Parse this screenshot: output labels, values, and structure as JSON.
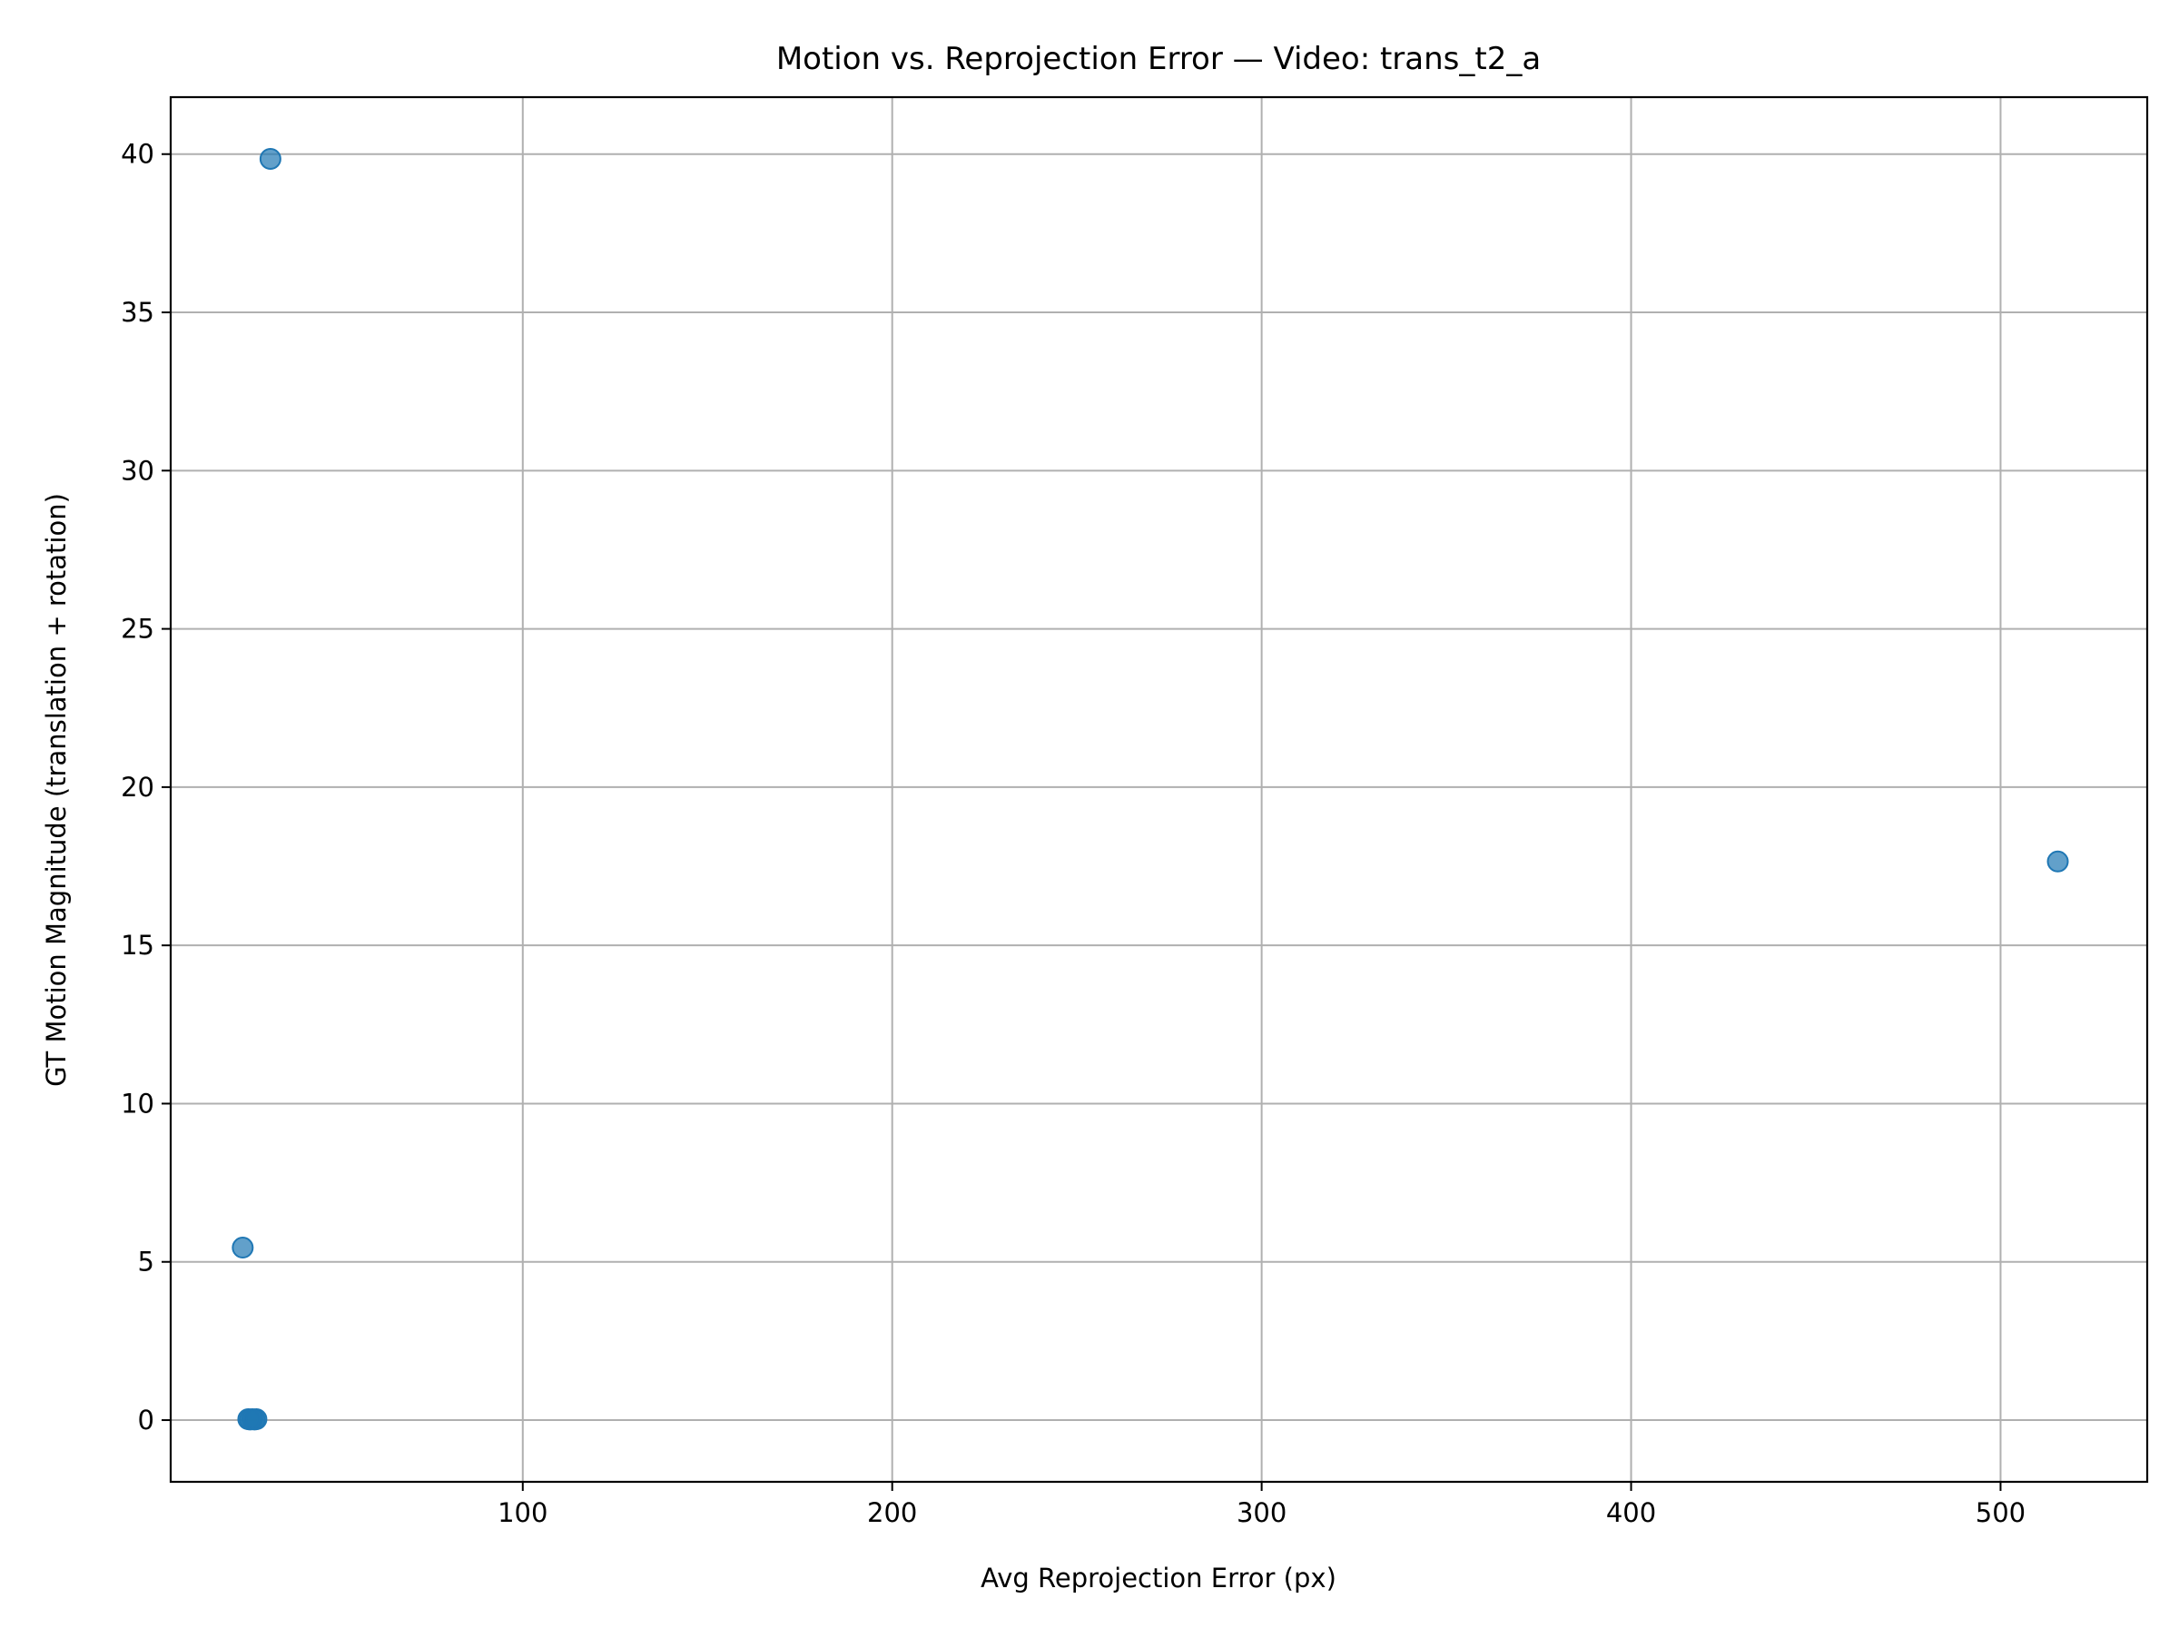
{
  "chart_data": {
    "type": "scatter",
    "title": "Motion vs. Reprojection Error — Video: trans_t2_a",
    "xlabel": "Avg Reprojection Error (px)",
    "ylabel": "GT Motion Magnitude (translation + rotation)",
    "xlim": [
      4.7,
      539.7
    ],
    "ylim": [
      -1.95,
      41.8
    ],
    "x_ticks": [
      100,
      200,
      300,
      400,
      500
    ],
    "x_tick_labels": [
      "100",
      "200",
      "300",
      "400",
      "500"
    ],
    "y_ticks": [
      0,
      5,
      10,
      15,
      20,
      25,
      30,
      35,
      40
    ],
    "y_tick_labels": [
      "0",
      "5",
      "10",
      "15",
      "20",
      "25",
      "30",
      "35",
      "40"
    ],
    "grid": true,
    "legend": false,
    "marker_color": "#1f77b4",
    "marker_alpha": 0.7,
    "series": [
      {
        "points": [
          {
            "x": 31.7,
            "y": 39.85
          },
          {
            "x": 24.2,
            "y": 5.45
          },
          {
            "x": 515.5,
            "y": 17.65
          },
          {
            "x": 25.7,
            "y": 0.03
          },
          {
            "x": 26.2,
            "y": 0.02
          },
          {
            "x": 26.8,
            "y": 0.03
          },
          {
            "x": 27.4,
            "y": 0.02
          },
          {
            "x": 27.9,
            "y": 0.03
          }
        ]
      }
    ]
  }
}
